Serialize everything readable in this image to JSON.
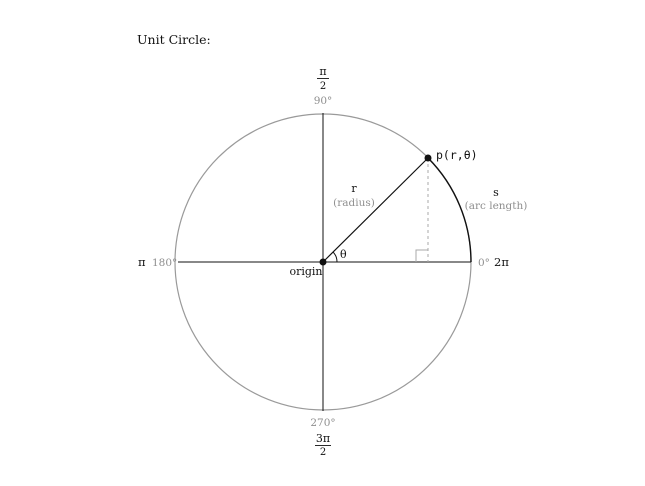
{
  "title": "Unit Circle:",
  "angles": {
    "top": {
      "fraction": {
        "numerator": "π",
        "denominator": "2"
      },
      "degrees": "90°"
    },
    "left": {
      "radians": "π",
      "degrees": "180°"
    },
    "right": {
      "radians": "2π",
      "degrees": "0°"
    },
    "bottom": {
      "fraction": {
        "numerator": "3π",
        "denominator": "2"
      },
      "degrees": "270°"
    }
  },
  "point_label": "p(r,θ)",
  "radius_label": "r",
  "radius_sublabel": "(radius)",
  "arc_label": "s",
  "arc_sublabel": "(arc length)",
  "theta_label": "θ",
  "origin_label": "origin",
  "colors": {
    "ink": "#111111",
    "muted": "#8f8f8f",
    "circle": "#9a9a9a",
    "dashed": "#a8a8a8"
  }
}
